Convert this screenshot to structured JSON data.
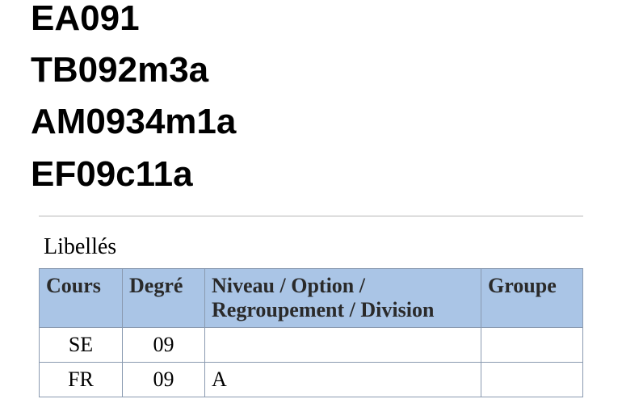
{
  "codes": [
    "EA091",
    "TB092m3a",
    "AM0934m1a",
    "EF09c11a"
  ],
  "table": {
    "caption": "Libellés",
    "columns": [
      "Cours",
      "Degré",
      "Niveau / Option / Regroupement / Division",
      "Groupe"
    ],
    "header_bg": "#aac5e6",
    "border_color": "#8a9ab0",
    "rows": [
      {
        "cours": "SE",
        "degre": "09",
        "niveau": "",
        "groupe": ""
      },
      {
        "cours": "FR",
        "degre": "09",
        "niveau": "A",
        "groupe": ""
      }
    ]
  }
}
